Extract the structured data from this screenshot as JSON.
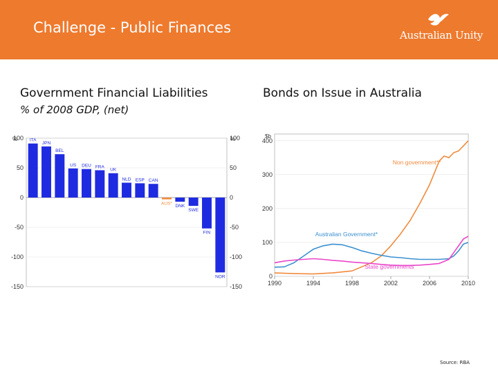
{
  "header": {
    "title": "Challenge - Public Finances",
    "logo_text": "Australian Unity",
    "bg_color": "#EE7A2E"
  },
  "left_panel": {
    "title": "Government Financial Liabilities",
    "subtitle": "% of 2008 GDP, (net)"
  },
  "right_panel": {
    "title": "Bonds on Issue in Australia"
  },
  "source": "Source: RBA",
  "chart_data": [
    {
      "type": "bar",
      "unit_label": "%",
      "categories": [
        "ITA",
        "JPN",
        "BEL",
        "US",
        "DEU",
        "FRA",
        "UK",
        "NLD",
        "ESP",
        "CAN",
        "AUS*",
        "DNK",
        "SWE",
        "FIN",
        "NOR"
      ],
      "values": [
        91,
        86,
        73,
        49,
        48,
        46,
        41,
        25,
        24,
        23,
        -3,
        -7,
        -14,
        -52,
        -126
      ],
      "colors": {
        "positive": "#1F2BE0",
        "australia": "#F08A3C"
      },
      "ylim": [
        -150,
        100
      ],
      "yticks": [
        100,
        50,
        0,
        -50,
        -100,
        -150
      ],
      "grid": true
    },
    {
      "type": "line",
      "unit_label": "$b",
      "xlim": [
        1990,
        2010
      ],
      "ylim": [
        0,
        420
      ],
      "xticks": [
        1990,
        1994,
        1998,
        2002,
        2006,
        2010
      ],
      "yticks": [
        0,
        100,
        200,
        300,
        400
      ],
      "grid": true,
      "series": [
        {
          "name": "Non government**",
          "color": "#F08A3C",
          "x": [
            1990,
            1992,
            1994,
            1996,
            1998,
            2000,
            2001,
            2002,
            2003,
            2004,
            2005,
            2006,
            2007,
            2007.5,
            2008,
            2008.5,
            2009,
            2009.5,
            2010
          ],
          "y": [
            10,
            8,
            7,
            10,
            16,
            40,
            60,
            90,
            125,
            165,
            215,
            270,
            340,
            355,
            350,
            365,
            370,
            385,
            400
          ]
        },
        {
          "name": "Australian Government*",
          "color": "#3B8FD0",
          "x": [
            1990,
            1991,
            1992,
            1993,
            1994,
            1995,
            1996,
            1997,
            1998,
            1999,
            2000,
            2001,
            2002,
            2003,
            2004,
            2005,
            2006,
            2007,
            2008,
            2008.5,
            2009,
            2009.5,
            2010
          ],
          "y": [
            27,
            28,
            40,
            60,
            80,
            90,
            95,
            93,
            85,
            75,
            68,
            62,
            57,
            55,
            52,
            50,
            50,
            50,
            52,
            60,
            75,
            95,
            100
          ]
        },
        {
          "name": "State governments",
          "color": "#E946C9",
          "x": [
            1990,
            1991,
            1992,
            1993,
            1994,
            1995,
            1996,
            1997,
            1998,
            1999,
            2000,
            2001,
            2002,
            2003,
            2004,
            2005,
            2006,
            2007,
            2008,
            2008.5,
            2009,
            2009.5,
            2010
          ],
          "y": [
            40,
            45,
            48,
            50,
            52,
            50,
            47,
            45,
            42,
            40,
            38,
            35,
            33,
            32,
            32,
            33,
            35,
            38,
            50,
            70,
            90,
            110,
            118
          ]
        }
      ]
    }
  ]
}
